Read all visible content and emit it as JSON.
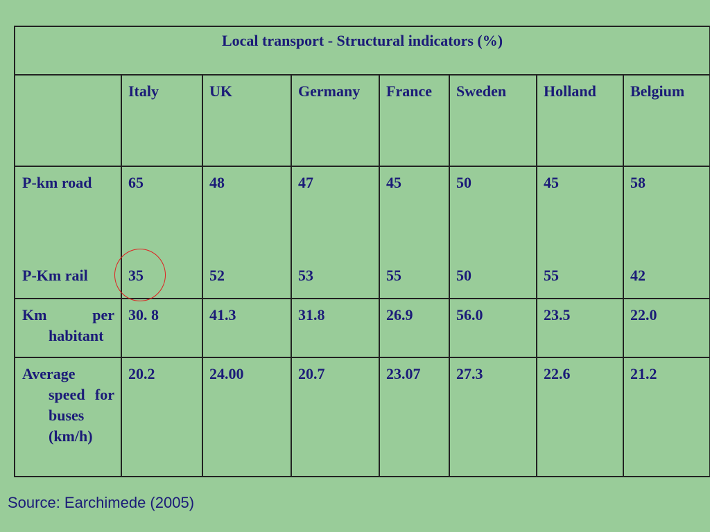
{
  "table": {
    "title": "Local transport - Structural indicators (%)",
    "columns": [
      "Italy",
      "UK",
      "Germany",
      "France",
      "Sweden",
      "Holland",
      "Belgium"
    ],
    "rows": [
      [
        "P-km road",
        "65",
        "48",
        "47",
        "45",
        "50",
        "45",
        "58"
      ],
      [
        "P-Km rail",
        "35",
        "52",
        "53",
        "55",
        "50",
        "55",
        "42"
      ],
      [
        "Km per habitant",
        "30. 8",
        "41.3",
        "31.8",
        "26.9",
        "56.0",
        "23.5",
        "22.0"
      ],
      [
        "Average speed for buses (km/h)",
        "20.2",
        "24.00",
        "20.7",
        "23.07",
        "27.3",
        "22.6",
        "21.2"
      ]
    ]
  },
  "source": "Source: Earchimede (2005)"
}
